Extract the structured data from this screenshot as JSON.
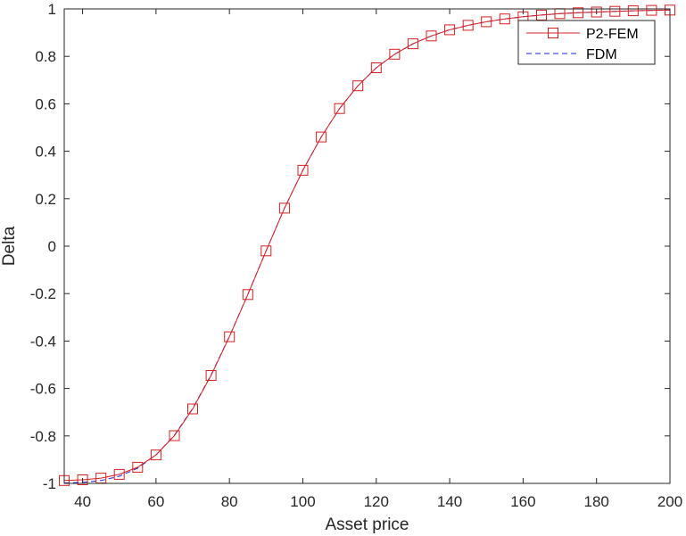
{
  "chart_data": {
    "type": "line",
    "title": "",
    "xlabel": "Asset price",
    "ylabel": "Delta",
    "xlim": [
      35,
      200
    ],
    "ylim": [
      -1,
      1
    ],
    "xticks": [
      40,
      60,
      80,
      100,
      120,
      140,
      160,
      180,
      200
    ],
    "yticks": [
      -1,
      -0.8,
      -0.6,
      -0.4,
      -0.2,
      0,
      0.2,
      0.4,
      0.6,
      0.8,
      1
    ],
    "ytick_labels": [
      "-1",
      "-0.8",
      "-0.6",
      "-0.4",
      "-0.2",
      "0",
      "0.2",
      "0.4",
      "0.6",
      "0.8",
      "1"
    ],
    "grid": false,
    "legend_position": "top-right",
    "x": [
      35,
      40,
      45,
      50,
      55,
      60,
      65,
      70,
      75,
      80,
      85,
      90,
      95,
      100,
      105,
      110,
      115,
      120,
      125,
      130,
      135,
      140,
      145,
      150,
      155,
      160,
      165,
      170,
      175,
      180,
      185,
      190,
      195,
      200
    ],
    "series": [
      {
        "name": "P2-FEM",
        "color": "#d62020",
        "line": "solid",
        "marker": "square",
        "values": [
          -0.988,
          -0.985,
          -0.978,
          -0.962,
          -0.932,
          -0.88,
          -0.799,
          -0.686,
          -0.545,
          -0.382,
          -0.204,
          -0.02,
          0.16,
          0.32,
          0.46,
          0.58,
          0.676,
          0.752,
          0.809,
          0.853,
          0.886,
          0.912,
          0.931,
          0.946,
          0.958,
          0.967,
          0.974,
          0.98,
          0.984,
          0.987,
          0.99,
          0.992,
          0.994,
          0.995
        ]
      },
      {
        "name": "FDM",
        "color": "#2020e0",
        "line": "dashed",
        "marker": "none",
        "values": [
          -0.998,
          -0.996,
          -0.988,
          -0.97,
          -0.936,
          -0.88,
          -0.797,
          -0.684,
          -0.543,
          -0.38,
          -0.203,
          -0.02,
          0.16,
          0.32,
          0.46,
          0.58,
          0.676,
          0.752,
          0.809,
          0.853,
          0.886,
          0.912,
          0.931,
          0.946,
          0.958,
          0.967,
          0.974,
          0.98,
          0.984,
          0.987,
          0.99,
          0.992,
          0.994,
          0.995
        ]
      }
    ]
  },
  "colors": {
    "axis": "#262626",
    "p2fem": "#d62020",
    "fdm": "#2020e0"
  }
}
